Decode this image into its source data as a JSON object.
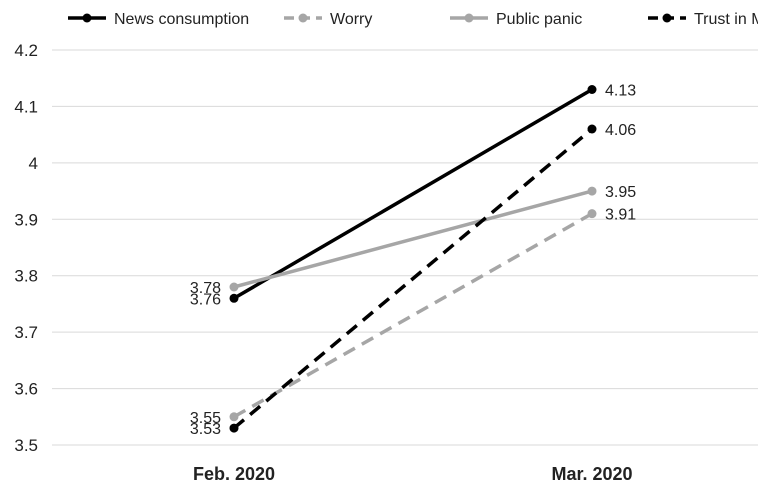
{
  "chart_data": {
    "type": "line",
    "categories": [
      "Feb. 2020",
      "Mar. 2020"
    ],
    "ylim": [
      3.5,
      4.2
    ],
    "yticks": [
      "3.5",
      "3.6",
      "3.7",
      "3.8",
      "3.9",
      "4",
      "4.1",
      "4.2"
    ],
    "grid": true,
    "legend_position": "top",
    "series": [
      {
        "name": "News consumption",
        "values": [
          3.76,
          4.13
        ],
        "labels": [
          "3.76",
          "4.13"
        ],
        "color": "#000000",
        "dashed": false
      },
      {
        "name": "Worry",
        "values": [
          3.55,
          3.91
        ],
        "labels": [
          "3.55",
          "3.91"
        ],
        "color": "#a6a6a6",
        "dashed": true
      },
      {
        "name": "Public panic",
        "values": [
          3.78,
          3.95
        ],
        "labels": [
          "3.78",
          "3.95"
        ],
        "color": "#a6a6a6",
        "dashed": false
      },
      {
        "name": "Trust in MOH",
        "values": [
          3.53,
          4.06
        ],
        "labels": [
          "3.53",
          "4.06"
        ],
        "color": "#000000",
        "dashed": true
      }
    ]
  }
}
